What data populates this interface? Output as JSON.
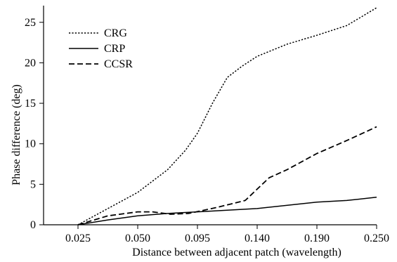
{
  "chart_data": {
    "type": "line",
    "x_tick_labels": [
      "0.025",
      "0.050",
      "0.095",
      "0.140",
      "0.190",
      "0.250"
    ],
    "y_ticks": [
      0,
      5,
      10,
      15,
      20,
      25
    ],
    "y_tick_labels": [
      "0",
      "5",
      "10",
      "15",
      "20",
      "25"
    ],
    "xlabel": "Distance between adjacent patch (wavelength)",
    "ylabel": "Phase difference (deg)",
    "ylim": [
      0,
      26.8
    ],
    "grid": false,
    "legend_position": "top-left",
    "series": [
      {
        "name": "CRG",
        "dash": "dotted",
        "points": [
          [
            0,
            0
          ],
          [
            0.5,
            2.0
          ],
          [
            1,
            4.0
          ],
          [
            1.5,
            6.8
          ],
          [
            1.8,
            9.2
          ],
          [
            2.0,
            11.3
          ],
          [
            2.25,
            15.0
          ],
          [
            2.5,
            18.2
          ],
          [
            2.75,
            19.6
          ],
          [
            3.0,
            20.8
          ],
          [
            3.5,
            22.3
          ],
          [
            4.0,
            23.4
          ],
          [
            4.5,
            24.6
          ],
          [
            5.0,
            26.8
          ]
        ]
      },
      {
        "name": "CRP",
        "dash": "solid",
        "points": [
          [
            0,
            0
          ],
          [
            0.5,
            0.6
          ],
          [
            1,
            1.1
          ],
          [
            1.5,
            1.4
          ],
          [
            2,
            1.6
          ],
          [
            3,
            2.0
          ],
          [
            4,
            2.8
          ],
          [
            4.5,
            3.0
          ],
          [
            5,
            3.4
          ]
        ]
      },
      {
        "name": "CCSR",
        "dash": "dashed",
        "points": [
          [
            0,
            0
          ],
          [
            0.5,
            1.1
          ],
          [
            1,
            1.6
          ],
          [
            1.25,
            1.6
          ],
          [
            1.55,
            1.3
          ],
          [
            1.85,
            1.4
          ],
          [
            2.3,
            2.1
          ],
          [
            2.8,
            3.0
          ],
          [
            3.2,
            5.8
          ],
          [
            3.5,
            6.8
          ],
          [
            4.0,
            8.8
          ],
          [
            4.5,
            10.4
          ],
          [
            5.0,
            12.1
          ]
        ]
      }
    ]
  }
}
